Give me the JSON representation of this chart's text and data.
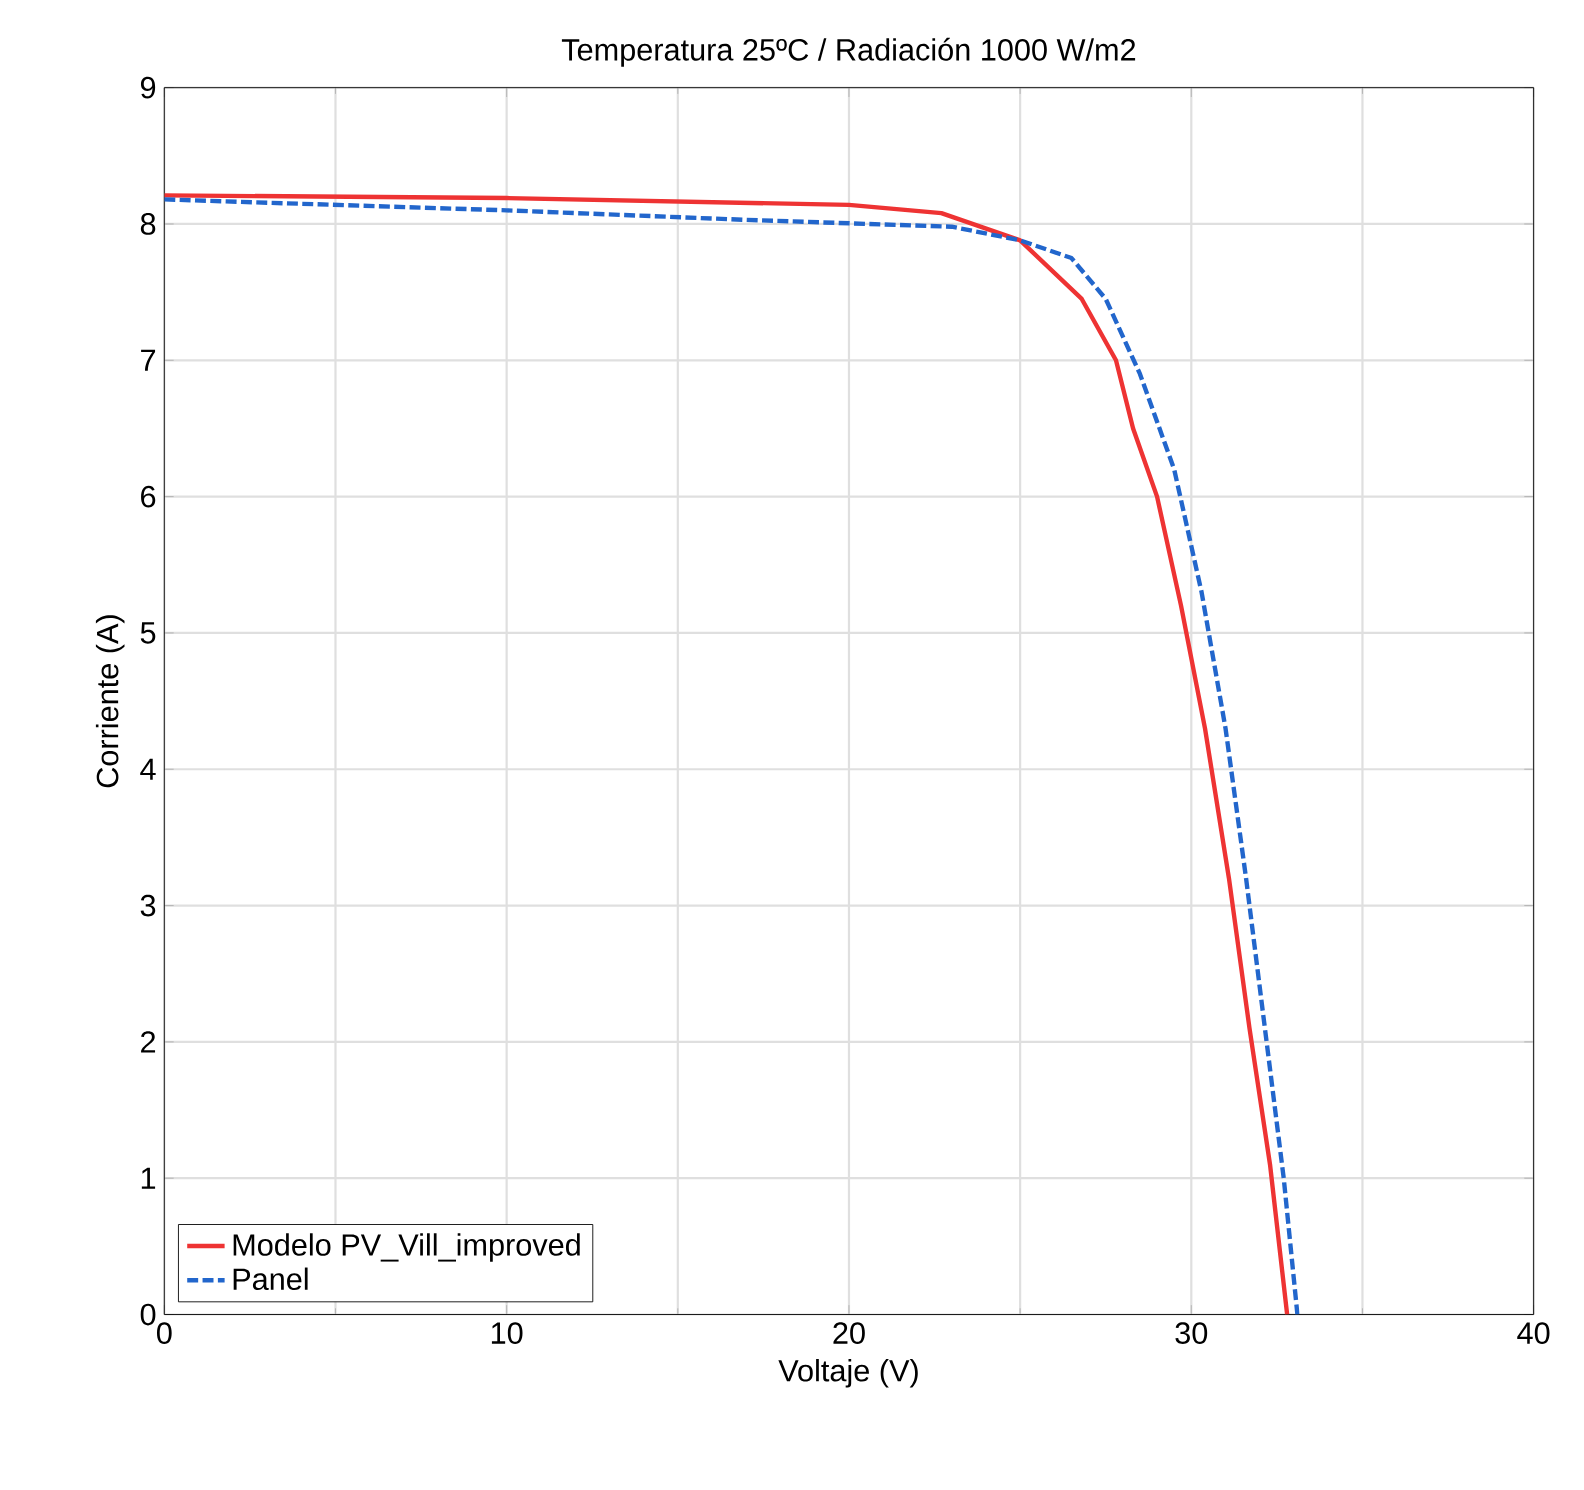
{
  "chart_data": {
    "type": "line",
    "title": "Temperatura 25ºC / Radiación 1000 W/m2",
    "xlabel": "Voltaje (V)",
    "ylabel": "Corriente (A)",
    "xlim": [
      0,
      40
    ],
    "ylim": [
      0,
      9
    ],
    "xticks": [
      0,
      10,
      20,
      30,
      40
    ],
    "yticks": [
      0,
      1,
      2,
      3,
      4,
      5,
      6,
      7,
      8,
      9
    ],
    "grid": true,
    "legend": "bottom left",
    "series": [
      {
        "name": "Modelo PV_Vill_improved",
        "color": "#ee3333",
        "line_style": "solid",
        "x": [
          0,
          10,
          20,
          22.7,
          25,
          26.8,
          27.8,
          28.3,
          29.0,
          29.7,
          30.4,
          31.1,
          31.7,
          32.3,
          32.8
        ],
        "values": [
          8.21,
          8.19,
          8.14,
          8.08,
          7.88,
          7.45,
          7.0,
          6.5,
          6.0,
          5.2,
          4.3,
          3.2,
          2.1,
          1.1,
          0
        ]
      },
      {
        "name": "Panel",
        "color": "#2266cc",
        "line_style": "dashed",
        "x": [
          0,
          10,
          17,
          23,
          25,
          26.5,
          27.5,
          28.5,
          29.5,
          30.3,
          31.0,
          31.6,
          32.2,
          32.7,
          33.1
        ],
        "values": [
          8.18,
          8.1,
          8.03,
          7.98,
          7.88,
          7.75,
          7.45,
          6.9,
          6.2,
          5.3,
          4.3,
          3.2,
          2.0,
          1.0,
          0
        ]
      }
    ]
  }
}
